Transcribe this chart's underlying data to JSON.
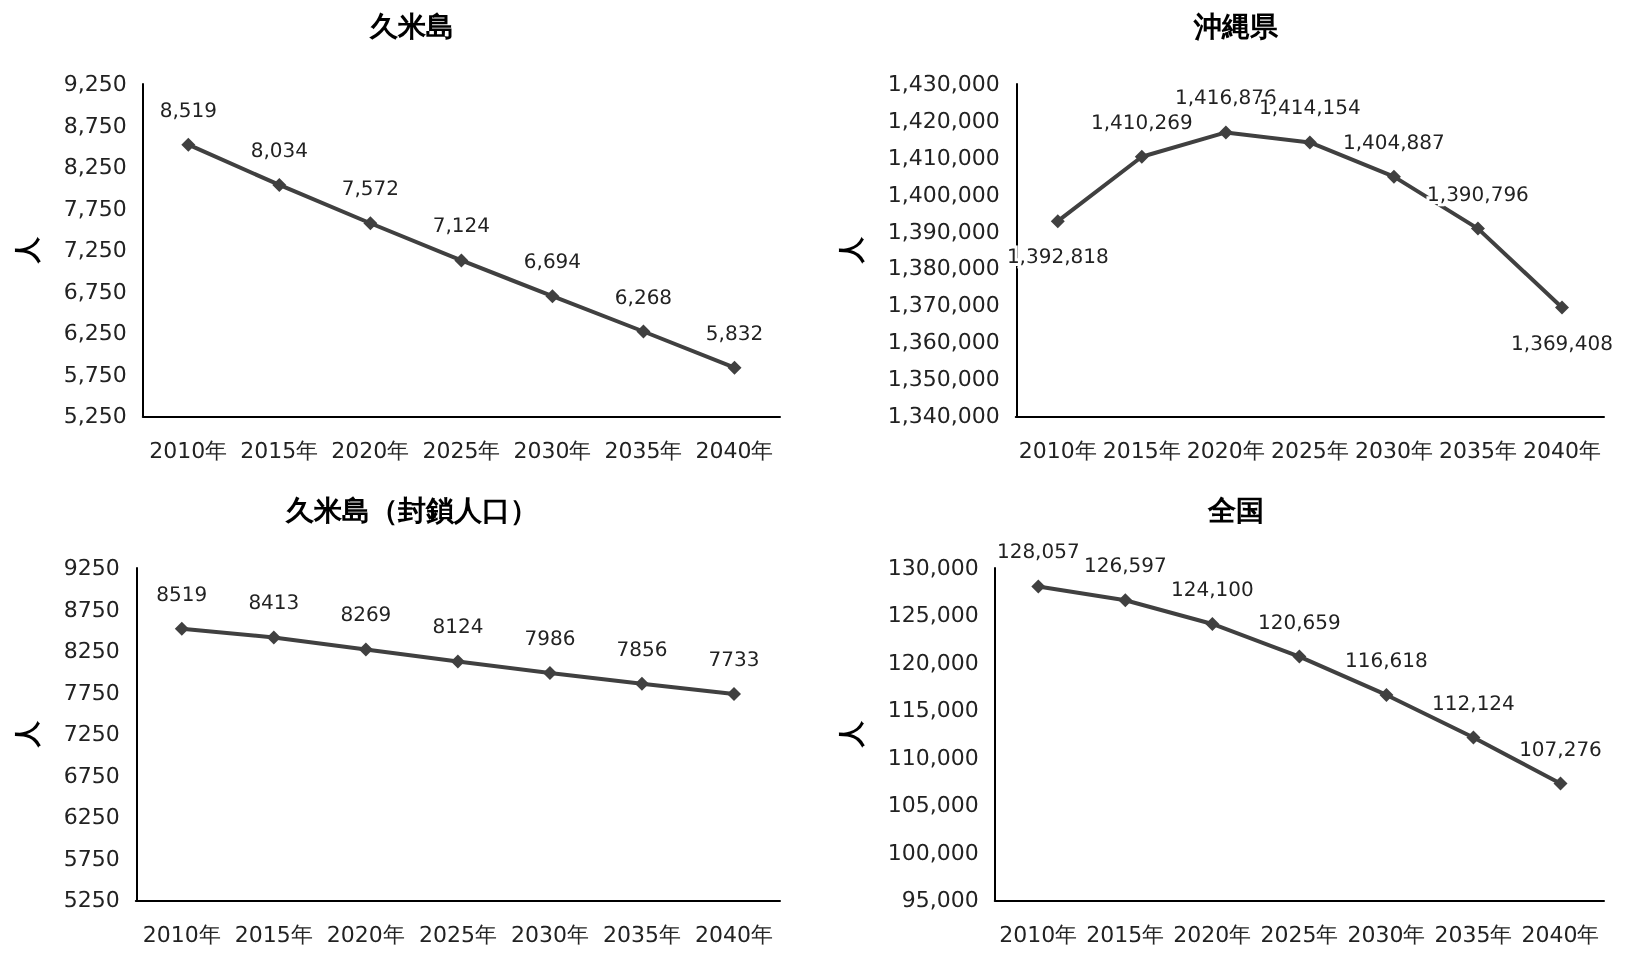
{
  "chart_data": [
    {
      "type": "line",
      "title": "久米島",
      "ylabel": "人",
      "categories": [
        "2010年",
        "2015年",
        "2020年",
        "2025年",
        "2030年",
        "2035年",
        "2040年"
      ],
      "series": [
        {
          "color": "#404040",
          "values": [
            8519,
            8034,
            7572,
            7124,
            6694,
            6268,
            5832
          ]
        }
      ],
      "ylim": [
        5250,
        9250
      ],
      "yticks": [
        {
          "value": 5250,
          "label": "5,250"
        },
        {
          "value": 5750,
          "label": "5,750"
        },
        {
          "value": 6250,
          "label": "6,250"
        },
        {
          "value": 6750,
          "label": "6,750"
        },
        {
          "value": 7250,
          "label": "7,250"
        },
        {
          "value": 7750,
          "label": "7,750"
        },
        {
          "value": 8250,
          "label": "8,250"
        },
        {
          "value": 8750,
          "label": "8,750"
        },
        {
          "value": 9250,
          "label": "9,250"
        }
      ],
      "value_labels": [
        "8,519",
        "8,034",
        "7,572",
        "7,124",
        "6,694",
        "6,268",
        "5,832"
      ],
      "grid": false,
      "marker": "diamond",
      "line_style": "solid"
    },
    {
      "type": "line",
      "title": "沖縄県",
      "ylabel": "人",
      "categories": [
        "2010年",
        "2015年",
        "2020年",
        "2025年",
        "2030年",
        "2035年",
        "2040年"
      ],
      "series": [
        {
          "color": "#404040",
          "values": [
            1392818,
            1410269,
            1416876,
            1414154,
            1404887,
            1390796,
            1369408
          ]
        }
      ],
      "ylim": [
        1340000,
        1430000
      ],
      "yticks": [
        {
          "value": 1340000,
          "label": "1,340,000"
        },
        {
          "value": 1350000,
          "label": "1,350,000"
        },
        {
          "value": 1360000,
          "label": "1,360,000"
        },
        {
          "value": 1370000,
          "label": "1,370,000"
        },
        {
          "value": 1380000,
          "label": "1,380,000"
        },
        {
          "value": 1390000,
          "label": "1,390,000"
        },
        {
          "value": 1400000,
          "label": "1,400,000"
        },
        {
          "value": 1410000,
          "label": "1,410,000"
        },
        {
          "value": 1420000,
          "label": "1,420,000"
        },
        {
          "value": 1430000,
          "label": "1,430,000"
        }
      ],
      "value_labels": [
        "1,392,818",
        "1,410,269",
        "1,416,876",
        "1,414,154",
        "1,404,887",
        "1,390,796",
        "1,369,408"
      ],
      "grid": false,
      "marker": "diamond",
      "line_style": "solid"
    },
    {
      "type": "line",
      "title": "久米島（封鎖人口）",
      "ylabel": "人",
      "categories": [
        "2010年",
        "2015年",
        "2020年",
        "2025年",
        "2030年",
        "2035年",
        "2040年"
      ],
      "series": [
        {
          "color": "#404040",
          "values": [
            8519,
            8413,
            8269,
            8124,
            7986,
            7856,
            7733
          ]
        }
      ],
      "ylim": [
        5250,
        9250
      ],
      "yticks": [
        5250,
        5750,
        6250,
        6750,
        7250,
        7750,
        8250,
        8750,
        9250
      ],
      "data_labels": true,
      "grid": false,
      "marker": "diamond",
      "line_style": "solid"
    },
    {
      "type": "line",
      "title": "全国",
      "ylabel": "人",
      "categories": [
        "2010年",
        "2015年",
        "2020年",
        "2025年",
        "2030年",
        "2035年",
        "2040年"
      ],
      "series": [
        {
          "color": "#404040",
          "values": [
            128057,
            126597,
            124100,
            120659,
            116618,
            112124,
            107276
          ]
        }
      ],
      "ylim": [
        95000,
        130000
      ],
      "yticks": [
        {
          "value": 95000,
          "label": "95,000"
        },
        {
          "value": 100000,
          "label": "100,000"
        },
        {
          "value": 105000,
          "label": "105,000"
        },
        {
          "value": 110000,
          "label": "110,000"
        },
        {
          "value": 115000,
          "label": "115,000"
        },
        {
          "value": 120000,
          "label": "120,000"
        },
        {
          "value": 125000,
          "label": "125,000"
        },
        {
          "value": 130000,
          "label": "130,000"
        }
      ],
      "value_labels": [
        "128,057",
        "126,597",
        "124,100",
        "120,659",
        "116,618",
        "112,124",
        "107,276"
      ],
      "grid": false,
      "marker": "diamond",
      "line_style": "solid"
    }
  ]
}
